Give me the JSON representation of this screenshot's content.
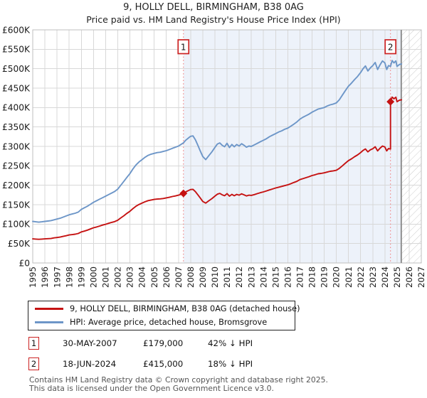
{
  "title": {
    "line1": "9, HOLLY DELL, BIRMINGHAM, B38 0AG",
    "line2": "Price paid vs. HM Land Registry's House Price Index (HPI)"
  },
  "legend": {
    "items": [
      {
        "label": "9, HOLLY DELL, BIRMINGHAM, B38 0AG (detached house)",
        "color": "#c51212"
      },
      {
        "label": "HPI: Average price, detached house, Bromsgrove",
        "color": "#6d96c8"
      }
    ]
  },
  "annotations": [
    {
      "num": "1",
      "date": "30-MAY-2007",
      "price": "£179,000",
      "pct": "42% ↓ HPI"
    },
    {
      "num": "2",
      "date": "18-JUN-2024",
      "price": "£415,000",
      "pct": "18% ↓ HPI"
    }
  ],
  "footer": {
    "line1": "Contains HM Land Registry data © Crown copyright and database right 2025.",
    "line2": "This data is licensed under the Open Government Licence v3.0."
  },
  "colors": {
    "property_line": "#c51212",
    "hpi_line": "#6d96c8",
    "shade": "#edf2fa",
    "dashed": "#f07f7f",
    "grid": "#d8d8d8",
    "plot_border": "#bfbfbf",
    "hatch": "#cccccc",
    "today_line": "#8f8f8f",
    "marker_box_border": "#cc2222",
    "tick_text": "#1a1a1a"
  },
  "chart_data": {
    "type": "line",
    "title": "9, HOLLY DELL, BIRMINGHAM, B38 0AG",
    "subtitle": "Price paid vs. HM Land Registry's House Price Index (HPI)",
    "xlim": [
      1995,
      2027
    ],
    "ylim": [
      0,
      600
    ],
    "y_values_unit": "GBP thousands",
    "grid": true,
    "legend_position": "bottom",
    "x_ticks": [
      1995,
      1996,
      1997,
      1998,
      1999,
      2000,
      2001,
      2002,
      2003,
      2004,
      2005,
      2006,
      2007,
      2008,
      2009,
      2010,
      2011,
      2012,
      2013,
      2014,
      2015,
      2016,
      2017,
      2018,
      2019,
      2020,
      2021,
      2022,
      2023,
      2024,
      2025,
      2026,
      2027
    ],
    "y_tick_values": [
      0,
      50,
      100,
      150,
      200,
      250,
      300,
      350,
      400,
      450,
      500,
      550,
      600
    ],
    "y_tick_labels": [
      "£0",
      "£50K",
      "£100K",
      "£150K",
      "£200K",
      "£250K",
      "£300K",
      "£350K",
      "£400K",
      "£450K",
      "£500K",
      "£550K",
      "£600K"
    ],
    "shaded_region": {
      "from": 2007.41,
      "to": 2025.35
    },
    "hatch_from": 2025.35,
    "sales": [
      {
        "label": "1",
        "date": "30-MAY-2007",
        "x": 2007.41,
        "price": 179,
        "price_label": "£179,000",
        "pct_vs_hpi": "42% ↓ HPI"
      },
      {
        "label": "2",
        "date": "18-JUN-2024",
        "x": 2024.46,
        "price": 415,
        "price_label": "£415,000",
        "pct_vs_hpi": "18% ↓ HPI"
      }
    ],
    "series": [
      {
        "name": "HPI: Average price, detached house, Bromsgrove",
        "color": "#6d96c8",
        "points": [
          [
            1995,
            107
          ],
          [
            1995.25,
            106
          ],
          [
            1995.5,
            105
          ],
          [
            1995.75,
            106
          ],
          [
            1996,
            107
          ],
          [
            1996.25,
            108
          ],
          [
            1996.5,
            109
          ],
          [
            1996.75,
            111
          ],
          [
            1997,
            113
          ],
          [
            1997.25,
            115
          ],
          [
            1997.5,
            118
          ],
          [
            1997.75,
            121
          ],
          [
            1998,
            124
          ],
          [
            1998.25,
            126
          ],
          [
            1998.5,
            128
          ],
          [
            1998.75,
            131
          ],
          [
            1999,
            138
          ],
          [
            1999.25,
            142
          ],
          [
            1999.5,
            146
          ],
          [
            1999.75,
            151
          ],
          [
            2000,
            156
          ],
          [
            2000.25,
            160
          ],
          [
            2000.5,
            164
          ],
          [
            2000.75,
            168
          ],
          [
            2001,
            172
          ],
          [
            2001.25,
            176
          ],
          [
            2001.5,
            180
          ],
          [
            2001.75,
            184
          ],
          [
            2002,
            190
          ],
          [
            2002.25,
            200
          ],
          [
            2002.5,
            210
          ],
          [
            2002.75,
            220
          ],
          [
            2003,
            230
          ],
          [
            2003.25,
            242
          ],
          [
            2003.5,
            252
          ],
          [
            2003.75,
            260
          ],
          [
            2004,
            266
          ],
          [
            2004.25,
            272
          ],
          [
            2004.5,
            277
          ],
          [
            2004.75,
            280
          ],
          [
            2005,
            282
          ],
          [
            2005.25,
            284
          ],
          [
            2005.5,
            285
          ],
          [
            2005.75,
            287
          ],
          [
            2006,
            289
          ],
          [
            2006.25,
            292
          ],
          [
            2006.5,
            295
          ],
          [
            2006.75,
            298
          ],
          [
            2007,
            301
          ],
          [
            2007.2,
            305
          ],
          [
            2007.41,
            309
          ],
          [
            2007.6,
            316
          ],
          [
            2007.8,
            321
          ],
          [
            2008,
            326
          ],
          [
            2008.2,
            327
          ],
          [
            2008.4,
            317
          ],
          [
            2008.6,
            303
          ],
          [
            2008.8,
            288
          ],
          [
            2009,
            274
          ],
          [
            2009.25,
            266
          ],
          [
            2009.5,
            276
          ],
          [
            2009.75,
            286
          ],
          [
            2010,
            297
          ],
          [
            2010.2,
            306
          ],
          [
            2010.4,
            309
          ],
          [
            2010.6,
            303
          ],
          [
            2010.8,
            299
          ],
          [
            2011,
            308
          ],
          [
            2011.2,
            297
          ],
          [
            2011.4,
            305
          ],
          [
            2011.6,
            299
          ],
          [
            2011.8,
            305
          ],
          [
            2012,
            301
          ],
          [
            2012.2,
            307
          ],
          [
            2012.4,
            303
          ],
          [
            2012.6,
            298
          ],
          [
            2012.8,
            301
          ],
          [
            2013,
            300
          ],
          [
            2013.25,
            304
          ],
          [
            2013.5,
            308
          ],
          [
            2013.75,
            312
          ],
          [
            2014,
            316
          ],
          [
            2014.25,
            320
          ],
          [
            2014.5,
            325
          ],
          [
            2014.75,
            329
          ],
          [
            2015,
            333
          ],
          [
            2015.25,
            337
          ],
          [
            2015.5,
            340
          ],
          [
            2015.75,
            344
          ],
          [
            2016,
            347
          ],
          [
            2016.25,
            352
          ],
          [
            2016.5,
            357
          ],
          [
            2016.75,
            363
          ],
          [
            2017,
            370
          ],
          [
            2017.25,
            375
          ],
          [
            2017.5,
            379
          ],
          [
            2017.75,
            383
          ],
          [
            2018,
            388
          ],
          [
            2018.25,
            392
          ],
          [
            2018.5,
            396
          ],
          [
            2018.75,
            398
          ],
          [
            2019,
            400
          ],
          [
            2019.25,
            404
          ],
          [
            2019.5,
            407
          ],
          [
            2019.75,
            409
          ],
          [
            2020,
            412
          ],
          [
            2020.25,
            420
          ],
          [
            2020.5,
            432
          ],
          [
            2020.75,
            444
          ],
          [
            2021,
            455
          ],
          [
            2021.25,
            463
          ],
          [
            2021.5,
            472
          ],
          [
            2021.75,
            480
          ],
          [
            2022,
            490
          ],
          [
            2022.2,
            500
          ],
          [
            2022.4,
            507
          ],
          [
            2022.6,
            494
          ],
          [
            2022.8,
            502
          ],
          [
            2023,
            508
          ],
          [
            2023.2,
            516
          ],
          [
            2023.4,
            498
          ],
          [
            2023.6,
            510
          ],
          [
            2023.8,
            520
          ],
          [
            2024,
            515
          ],
          [
            2024.15,
            498
          ],
          [
            2024.3,
            508
          ],
          [
            2024.46,
            506
          ],
          [
            2024.6,
            521
          ],
          [
            2024.75,
            515
          ],
          [
            2024.9,
            520
          ],
          [
            2025,
            506
          ],
          [
            2025.2,
            511
          ],
          [
            2025.37,
            512
          ]
        ]
      },
      {
        "name": "9, HOLLY DELL, BIRMINGHAM, B38 0AG (detached house)",
        "color": "#c51212",
        "points": [
          [
            1995,
            62
          ],
          [
            1995.25,
            61.5
          ],
          [
            1995.5,
            61
          ],
          [
            1995.75,
            61.5
          ],
          [
            1996,
            62
          ],
          [
            1996.25,
            62.5
          ],
          [
            1996.5,
            63
          ],
          [
            1996.75,
            64.5
          ],
          [
            1997,
            65.5
          ],
          [
            1997.25,
            66.5
          ],
          [
            1997.5,
            68.5
          ],
          [
            1997.75,
            70
          ],
          [
            1998,
            72
          ],
          [
            1998.25,
            73
          ],
          [
            1998.5,
            74
          ],
          [
            1998.75,
            76
          ],
          [
            1999,
            80
          ],
          [
            1999.25,
            82
          ],
          [
            1999.5,
            84.5
          ],
          [
            1999.75,
            87.5
          ],
          [
            2000,
            90.5
          ],
          [
            2000.25,
            92.5
          ],
          [
            2000.5,
            95
          ],
          [
            2000.75,
            97.5
          ],
          [
            2001,
            99.5
          ],
          [
            2001.25,
            102
          ],
          [
            2001.5,
            104.5
          ],
          [
            2001.75,
            106.5
          ],
          [
            2002,
            110
          ],
          [
            2002.25,
            116
          ],
          [
            2002.5,
            121.5
          ],
          [
            2002.75,
            127.5
          ],
          [
            2003,
            133
          ],
          [
            2003.25,
            140
          ],
          [
            2003.5,
            146
          ],
          [
            2003.75,
            150.5
          ],
          [
            2004,
            154
          ],
          [
            2004.25,
            157.5
          ],
          [
            2004.5,
            160.5
          ],
          [
            2004.75,
            162
          ],
          [
            2005,
            163.5
          ],
          [
            2005.25,
            164.5
          ],
          [
            2005.5,
            165
          ],
          [
            2005.75,
            166
          ],
          [
            2006,
            167.5
          ],
          [
            2006.25,
            169
          ],
          [
            2006.5,
            171
          ],
          [
            2006.75,
            172.5
          ],
          [
            2007,
            174.5
          ],
          [
            2007.2,
            176.5
          ],
          [
            2007.41,
            179
          ],
          [
            2007.6,
            183
          ],
          [
            2007.8,
            186
          ],
          [
            2008,
            189
          ],
          [
            2008.2,
            189.5
          ],
          [
            2008.4,
            183.5
          ],
          [
            2008.6,
            175.5
          ],
          [
            2008.8,
            167
          ],
          [
            2009,
            158.5
          ],
          [
            2009.25,
            154
          ],
          [
            2009.5,
            160
          ],
          [
            2009.75,
            165.5
          ],
          [
            2010,
            172
          ],
          [
            2010.2,
            177
          ],
          [
            2010.4,
            179
          ],
          [
            2010.6,
            175.5
          ],
          [
            2010.8,
            173
          ],
          [
            2011,
            178.5
          ],
          [
            2011.2,
            172
          ],
          [
            2011.4,
            176.5
          ],
          [
            2011.6,
            173
          ],
          [
            2011.8,
            176.5
          ],
          [
            2012,
            174.5
          ],
          [
            2012.2,
            178
          ],
          [
            2012.4,
            175.5
          ],
          [
            2012.6,
            172.5
          ],
          [
            2012.8,
            174.5
          ],
          [
            2013,
            174
          ],
          [
            2013.25,
            176
          ],
          [
            2013.5,
            178.5
          ],
          [
            2013.75,
            181
          ],
          [
            2014,
            183
          ],
          [
            2014.25,
            185.5
          ],
          [
            2014.5,
            188
          ],
          [
            2014.75,
            190.5
          ],
          [
            2015,
            193
          ],
          [
            2015.25,
            195
          ],
          [
            2015.5,
            197
          ],
          [
            2015.75,
            199
          ],
          [
            2016,
            201
          ],
          [
            2016.25,
            204
          ],
          [
            2016.5,
            207
          ],
          [
            2016.75,
            210
          ],
          [
            2017,
            214.5
          ],
          [
            2017.25,
            217
          ],
          [
            2017.5,
            219.5
          ],
          [
            2017.75,
            222
          ],
          [
            2018,
            225
          ],
          [
            2018.25,
            227
          ],
          [
            2018.5,
            229.5
          ],
          [
            2018.75,
            230.5
          ],
          [
            2019,
            232
          ],
          [
            2019.25,
            234
          ],
          [
            2019.5,
            236
          ],
          [
            2019.75,
            237
          ],
          [
            2020,
            238.5
          ],
          [
            2020.25,
            243.5
          ],
          [
            2020.5,
            250
          ],
          [
            2020.75,
            257
          ],
          [
            2021,
            263.5
          ],
          [
            2021.25,
            268
          ],
          [
            2021.5,
            273.5
          ],
          [
            2021.75,
            278
          ],
          [
            2022,
            284
          ],
          [
            2022.2,
            289.5
          ],
          [
            2022.4,
            293.5
          ],
          [
            2022.6,
            286
          ],
          [
            2022.8,
            291
          ],
          [
            2023,
            294
          ],
          [
            2023.2,
            299
          ],
          [
            2023.4,
            288.5
          ],
          [
            2023.6,
            295.5
          ],
          [
            2023.8,
            301
          ],
          [
            2024,
            298.5
          ],
          [
            2024.15,
            288.5
          ],
          [
            2024.3,
            294.5
          ],
          [
            2024.46,
            293
          ],
          [
            2024.46,
            415
          ],
          [
            2024.6,
            427
          ],
          [
            2024.75,
            422.5
          ],
          [
            2024.9,
            426.5
          ],
          [
            2025,
            415
          ],
          [
            2025.2,
            419
          ],
          [
            2025.37,
            420
          ]
        ]
      }
    ]
  }
}
